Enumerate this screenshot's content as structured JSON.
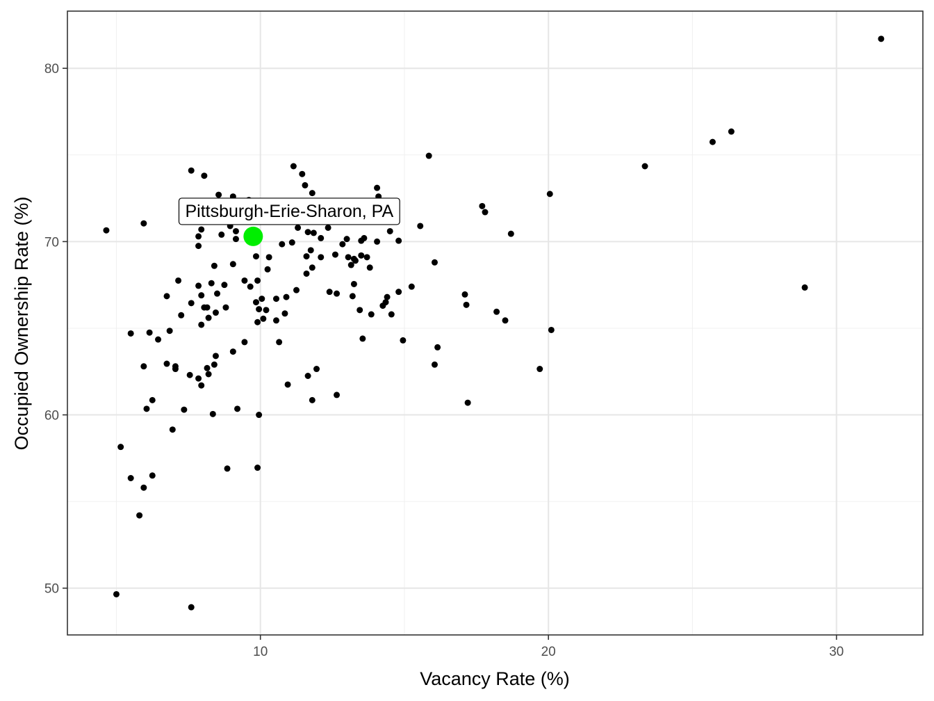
{
  "chart_data": {
    "type": "scatter",
    "title": "",
    "xlabel": "Vacancy Rate (%)",
    "ylabel": "Occupied Ownership Rate (%)",
    "xlim": [
      3.3,
      33.0
    ],
    "ylim": [
      47.3,
      83.3
    ],
    "x_ticks": [
      10,
      20,
      30
    ],
    "y_ticks": [
      50,
      60,
      70,
      80
    ],
    "grid": true,
    "legend": "none",
    "point_color": "#000000",
    "highlight_color": "#00ee00",
    "highlight": {
      "label": "Pittsburgh-Erie-Sharon, PA",
      "x": 9.75,
      "y": 70.3
    },
    "points": [
      [
        4.65,
        70.65
      ],
      [
        5.0,
        49.65
      ],
      [
        5.15,
        58.15
      ],
      [
        5.5,
        64.7
      ],
      [
        5.5,
        56.35
      ],
      [
        5.8,
        54.2
      ],
      [
        5.95,
        71.05
      ],
      [
        5.95,
        62.8
      ],
      [
        5.95,
        55.8
      ],
      [
        6.05,
        60.35
      ],
      [
        6.15,
        64.75
      ],
      [
        6.25,
        60.85
      ],
      [
        6.25,
        56.5
      ],
      [
        6.45,
        64.35
      ],
      [
        6.75,
        66.85
      ],
      [
        6.75,
        62.95
      ],
      [
        6.85,
        64.85
      ],
      [
        6.95,
        59.15
      ],
      [
        7.05,
        62.65
      ],
      [
        7.05,
        62.8
      ],
      [
        7.15,
        67.75
      ],
      [
        7.25,
        65.75
      ],
      [
        7.35,
        60.3
      ],
      [
        7.55,
        62.3
      ],
      [
        7.6,
        74.1
      ],
      [
        7.6,
        66.45
      ],
      [
        7.6,
        48.9
      ],
      [
        7.85,
        69.75
      ],
      [
        7.85,
        70.3
      ],
      [
        7.85,
        67.45
      ],
      [
        7.85,
        62.1
      ],
      [
        7.95,
        70.7
      ],
      [
        7.95,
        66.9
      ],
      [
        7.95,
        65.2
      ],
      [
        7.95,
        61.7
      ],
      [
        8.05,
        73.8
      ],
      [
        8.05,
        66.2
      ],
      [
        8.15,
        66.2
      ],
      [
        8.15,
        62.7
      ],
      [
        8.2,
        65.6
      ],
      [
        8.2,
        62.35
      ],
      [
        8.3,
        67.6
      ],
      [
        8.35,
        60.05
      ],
      [
        8.4,
        68.6
      ],
      [
        8.4,
        62.9
      ],
      [
        8.45,
        65.9
      ],
      [
        8.45,
        63.4
      ],
      [
        8.5,
        67.0
      ],
      [
        8.55,
        72.7
      ],
      [
        8.65,
        70.4
      ],
      [
        8.75,
        67.5
      ],
      [
        8.8,
        66.2
      ],
      [
        8.85,
        56.9
      ],
      [
        8.95,
        70.9
      ],
      [
        9.05,
        72.6
      ],
      [
        9.05,
        68.7
      ],
      [
        9.05,
        63.65
      ],
      [
        9.15,
        70.15
      ],
      [
        9.15,
        70.6
      ],
      [
        9.2,
        60.35
      ],
      [
        9.45,
        67.75
      ],
      [
        9.45,
        64.2
      ],
      [
        9.6,
        72.4
      ],
      [
        9.65,
        67.4
      ],
      [
        9.85,
        69.15
      ],
      [
        9.85,
        66.5
      ],
      [
        9.9,
        67.75
      ],
      [
        9.9,
        65.35
      ],
      [
        9.9,
        56.95
      ],
      [
        9.95,
        60.0
      ],
      [
        9.95,
        66.1
      ],
      [
        10.05,
        66.7
      ],
      [
        10.1,
        65.55
      ],
      [
        10.2,
        66.05
      ],
      [
        10.25,
        68.4
      ],
      [
        10.3,
        69.1
      ],
      [
        10.55,
        66.7
      ],
      [
        10.55,
        65.45
      ],
      [
        10.65,
        64.2
      ],
      [
        10.75,
        69.85
      ],
      [
        10.85,
        65.85
      ],
      [
        10.9,
        66.8
      ],
      [
        10.95,
        61.75
      ],
      [
        11.1,
        69.95
      ],
      [
        11.15,
        74.35
      ],
      [
        11.25,
        67.2
      ],
      [
        11.3,
        70.8
      ],
      [
        11.45,
        73.9
      ],
      [
        11.55,
        73.25
      ],
      [
        11.6,
        69.15
      ],
      [
        11.6,
        68.15
      ],
      [
        11.65,
        70.55
      ],
      [
        11.65,
        62.25
      ],
      [
        11.75,
        69.5
      ],
      [
        11.8,
        72.8
      ],
      [
        11.8,
        68.5
      ],
      [
        11.8,
        60.85
      ],
      [
        11.85,
        70.5
      ],
      [
        11.95,
        62.65
      ],
      [
        12.1,
        70.2
      ],
      [
        12.1,
        69.1
      ],
      [
        12.35,
        70.8
      ],
      [
        12.4,
        67.1
      ],
      [
        12.6,
        69.25
      ],
      [
        12.65,
        67.0
      ],
      [
        12.65,
        61.15
      ],
      [
        12.85,
        69.85
      ],
      [
        13.0,
        70.15
      ],
      [
        13.05,
        69.1
      ],
      [
        13.15,
        68.65
      ],
      [
        13.2,
        66.85
      ],
      [
        13.25,
        69.0
      ],
      [
        13.25,
        67.55
      ],
      [
        13.3,
        68.9
      ],
      [
        13.45,
        66.05
      ],
      [
        13.5,
        70.05
      ],
      [
        13.5,
        69.2
      ],
      [
        13.55,
        64.4
      ],
      [
        13.6,
        70.2
      ],
      [
        13.7,
        69.1
      ],
      [
        13.8,
        68.5
      ],
      [
        13.85,
        65.8
      ],
      [
        14.05,
        70.0
      ],
      [
        14.05,
        73.1
      ],
      [
        14.1,
        72.6
      ],
      [
        14.25,
        66.3
      ],
      [
        14.35,
        66.5
      ],
      [
        14.4,
        66.8
      ],
      [
        14.5,
        70.6
      ],
      [
        14.55,
        65.8
      ],
      [
        14.8,
        70.05
      ],
      [
        14.8,
        67.1
      ],
      [
        14.95,
        64.3
      ],
      [
        15.25,
        67.4
      ],
      [
        15.55,
        70.9
      ],
      [
        15.85,
        74.95
      ],
      [
        16.05,
        68.8
      ],
      [
        16.05,
        62.9
      ],
      [
        16.15,
        63.9
      ],
      [
        17.1,
        66.95
      ],
      [
        17.15,
        66.35
      ],
      [
        17.2,
        60.7
      ],
      [
        17.7,
        72.05
      ],
      [
        17.8,
        71.7
      ],
      [
        18.2,
        65.95
      ],
      [
        18.5,
        65.45
      ],
      [
        18.7,
        70.45
      ],
      [
        19.7,
        62.65
      ],
      [
        20.05,
        72.75
      ],
      [
        20.1,
        64.9
      ],
      [
        23.35,
        74.35
      ],
      [
        25.7,
        75.75
      ],
      [
        26.35,
        76.35
      ],
      [
        28.9,
        67.35
      ],
      [
        31.55,
        81.7
      ]
    ]
  }
}
